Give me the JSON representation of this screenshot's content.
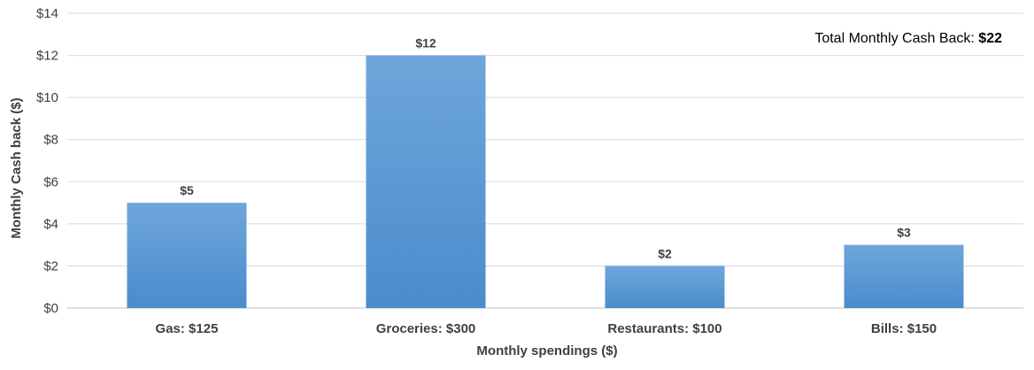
{
  "chart_data": {
    "type": "bar",
    "categories": [
      "Gas: $125",
      "Groceries: $300",
      "Restaurants: $100",
      "Bills: $150"
    ],
    "values": [
      5,
      12,
      2,
      3
    ],
    "data_labels": [
      "$5",
      "$12",
      "$2",
      "$3"
    ],
    "title": "",
    "xlabel": "Monthly spendings ($)",
    "ylabel": "Monthly Cash back ($)",
    "ylim": [
      0,
      14
    ],
    "yticks": [
      0,
      2,
      4,
      6,
      8,
      10,
      12,
      14
    ],
    "ytick_labels": [
      "$0",
      "$2",
      "$4",
      "$6",
      "$8",
      "$10",
      "$12",
      "$14"
    ],
    "grid": true,
    "annotation": {
      "prefix": "Total Monthly Cash Back: ",
      "value": "$22",
      "placement": "top-right"
    },
    "colors": {
      "bar_top": "#6fa6db",
      "bar_bottom": "#4a8ccc",
      "grid": "#d9d9d9",
      "axis": "#bfbfbf",
      "text": "#404040"
    }
  }
}
